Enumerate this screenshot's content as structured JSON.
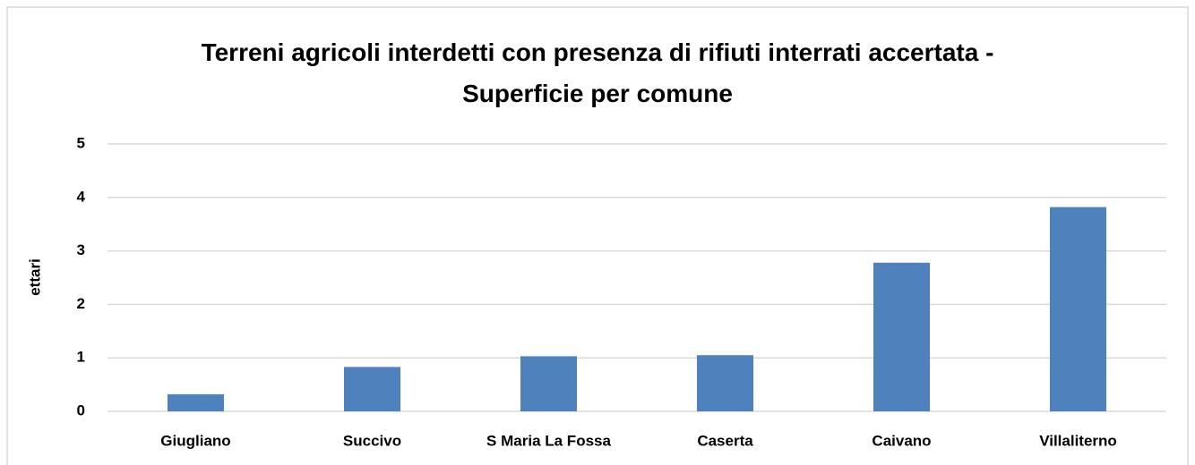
{
  "chart_data": {
    "type": "bar",
    "title": "Terreni agricoli interdetti con presenza di rifiuti interrati accertata - Superficie per comune",
    "y_label": "ettari",
    "categories": [
      "Giugliano",
      "Succivo",
      "S Maria La Fossa",
      "Caserta",
      "Caivano",
      "Villaliterno"
    ],
    "values": [
      0.32,
      0.83,
      1.03,
      1.05,
      2.78,
      3.82
    ],
    "color": "#4f81bd",
    "ylim": [
      0,
      5
    ],
    "yticks": [
      0,
      1,
      2,
      3,
      4,
      5
    ],
    "grid": true
  }
}
